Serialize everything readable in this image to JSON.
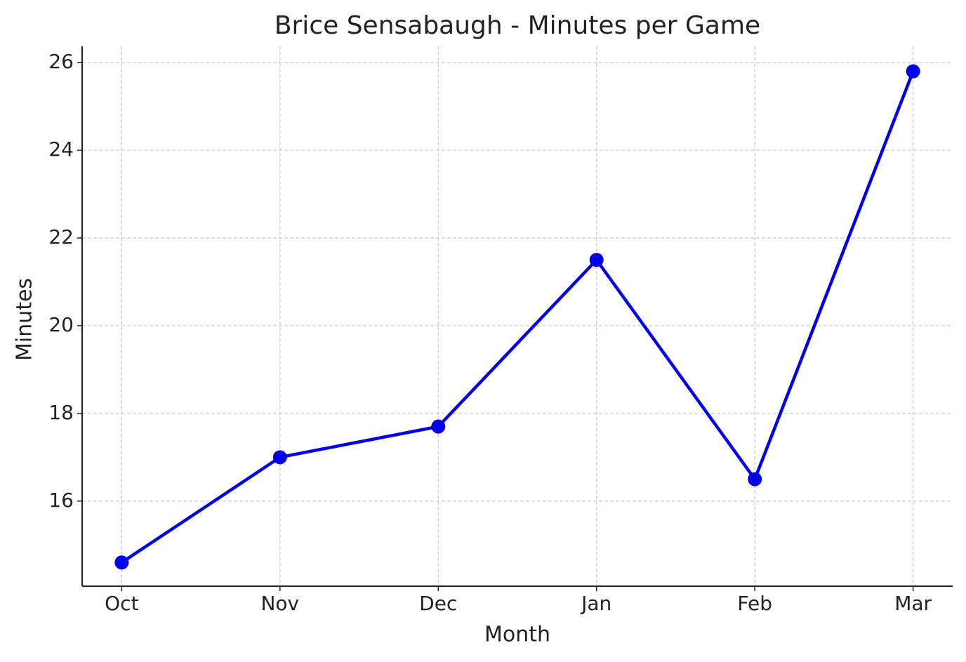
{
  "chart_data": {
    "type": "line",
    "title": "Brice Sensabaugh - Minutes per Game",
    "x_label": "Month",
    "y_label": "Minutes",
    "categories": [
      "Oct",
      "Nov",
      "Dec",
      "Jan",
      "Feb",
      "Mar"
    ],
    "values": [
      14.6,
      17.0,
      17.7,
      21.5,
      16.5,
      25.8
    ],
    "color": "#0000ee",
    "ylim": [
      14.06,
      26.37
    ],
    "yticks": [
      16,
      18,
      20,
      22,
      24,
      26
    ],
    "grid": true
  }
}
